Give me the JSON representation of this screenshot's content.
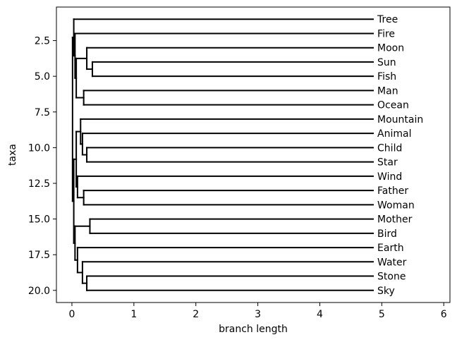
{
  "chart_data": {
    "type": "dendrogram",
    "orientation": "horizontal",
    "xlabel": "branch length",
    "ylabel": "taxa",
    "xlim": [
      -0.25,
      6.1
    ],
    "ylim": [
      20.85,
      0.15
    ],
    "xticks": [
      0,
      1,
      2,
      3,
      4,
      5,
      6
    ],
    "yticks": [
      2.5,
      5.0,
      7.5,
      10.0,
      12.5,
      15.0,
      17.5,
      20.0
    ],
    "xtick_labels": [
      "0",
      "1",
      "2",
      "3",
      "4",
      "5",
      "6"
    ],
    "ytick_labels": [
      "2.5",
      "5.0",
      "7.5",
      "10.0",
      "12.5",
      "15.0",
      "17.5",
      "20.0"
    ],
    "line_color": "#000000",
    "leaves": [
      {
        "name": "Tree",
        "y": 1
      },
      {
        "name": "Fire",
        "y": 2
      },
      {
        "name": "Moon",
        "y": 3
      },
      {
        "name": "Sun",
        "y": 4
      },
      {
        "name": "Fish",
        "y": 5
      },
      {
        "name": "Man",
        "y": 6
      },
      {
        "name": "Ocean",
        "y": 7
      },
      {
        "name": "Mountain",
        "y": 8
      },
      {
        "name": "Animal",
        "y": 9
      },
      {
        "name": "Child",
        "y": 10
      },
      {
        "name": "Star",
        "y": 11
      },
      {
        "name": "Wind",
        "y": 12
      },
      {
        "name": "Father",
        "y": 13
      },
      {
        "name": "Woman",
        "y": 14
      },
      {
        "name": "Mother",
        "y": 15
      },
      {
        "name": "Bird",
        "y": 16
      },
      {
        "name": "Earth",
        "y": 17
      },
      {
        "name": "Water",
        "y": 18
      },
      {
        "name": "Stone",
        "y": 19
      },
      {
        "name": "Sky",
        "y": 20
      }
    ],
    "leaf_x": 4.86,
    "nodes": [
      {
        "id": "sunfish",
        "x": 0.33,
        "y_top": 4,
        "y_bottom": 5
      },
      {
        "id": "moonsunfish",
        "x": 0.24,
        "y_top": 3,
        "y_bottom": 4.5
      },
      {
        "id": "manocean",
        "x": 0.19,
        "y_top": 6,
        "y_bottom": 7
      },
      {
        "id": "grpA",
        "x": 0.07,
        "y_top": 3.75,
        "y_bottom": 6.5
      },
      {
        "id": "firegrp",
        "x": 0.05,
        "y_top": 2,
        "y_bottom": 5.125
      },
      {
        "id": "top",
        "x": 0.03,
        "y_top": 1,
        "y_bottom": 3.5625
      },
      {
        "id": "childstar",
        "x": 0.24,
        "y_top": 10,
        "y_bottom": 11
      },
      {
        "id": "animalgrp",
        "x": 0.17,
        "y_top": 9,
        "y_bottom": 10.5
      },
      {
        "id": "mountaingrp",
        "x": 0.14,
        "y_top": 8,
        "y_bottom": 9.75
      },
      {
        "id": "fatherwoman",
        "x": 0.19,
        "y_top": 13,
        "y_bottom": 14
      },
      {
        "id": "windgrp",
        "x": 0.09,
        "y_top": 12,
        "y_bottom": 13.5
      },
      {
        "id": "midgrp",
        "x": 0.07,
        "y_top": 8.875,
        "y_bottom": 12.75
      },
      {
        "id": "motherbird",
        "x": 0.29,
        "y_top": 15,
        "y_bottom": 16
      },
      {
        "id": "stonesky",
        "x": 0.24,
        "y_top": 19,
        "y_bottom": 20
      },
      {
        "id": "watergrp",
        "x": 0.17,
        "y_top": 18,
        "y_bottom": 19.5
      },
      {
        "id": "earthgrp",
        "x": 0.09,
        "y_top": 17,
        "y_bottom": 18.75
      },
      {
        "id": "lowgrp",
        "x": 0.05,
        "y_top": 15.5,
        "y_bottom": 17.875
      },
      {
        "id": "midlow",
        "x": 0.03,
        "y_top": 10.8125,
        "y_bottom": 16.6875
      },
      {
        "id": "root",
        "x": 0.01,
        "y_top": 2.28125,
        "y_bottom": 13.75
      }
    ],
    "edges": [
      {
        "x_from": 0.03,
        "x_to": 4.86,
        "y": 1
      },
      {
        "x_from": 0.05,
        "x_to": 4.86,
        "y": 2
      },
      {
        "x_from": 0.24,
        "x_to": 4.86,
        "y": 3
      },
      {
        "x_from": 0.33,
        "x_to": 4.86,
        "y": 4
      },
      {
        "x_from": 0.33,
        "x_to": 4.86,
        "y": 5
      },
      {
        "x_from": 0.19,
        "x_to": 4.86,
        "y": 6
      },
      {
        "x_from": 0.19,
        "x_to": 4.86,
        "y": 7
      },
      {
        "x_from": 0.14,
        "x_to": 4.86,
        "y": 8
      },
      {
        "x_from": 0.17,
        "x_to": 4.86,
        "y": 9
      },
      {
        "x_from": 0.24,
        "x_to": 4.86,
        "y": 10
      },
      {
        "x_from": 0.24,
        "x_to": 4.86,
        "y": 11
      },
      {
        "x_from": 0.09,
        "x_to": 4.86,
        "y": 12
      },
      {
        "x_from": 0.19,
        "x_to": 4.86,
        "y": 13
      },
      {
        "x_from": 0.19,
        "x_to": 4.86,
        "y": 14
      },
      {
        "x_from": 0.29,
        "x_to": 4.86,
        "y": 15
      },
      {
        "x_from": 0.29,
        "x_to": 4.86,
        "y": 16
      },
      {
        "x_from": 0.09,
        "x_to": 4.86,
        "y": 17
      },
      {
        "x_from": 0.17,
        "x_to": 4.86,
        "y": 18
      },
      {
        "x_from": 0.24,
        "x_to": 4.86,
        "y": 19
      },
      {
        "x_from": 0.24,
        "x_to": 4.86,
        "y": 20
      },
      {
        "x_from": 0.24,
        "x_to": 0.33,
        "y": 4.5
      },
      {
        "x_from": 0.07,
        "x_to": 0.24,
        "y": 3.75
      },
      {
        "x_from": 0.07,
        "x_to": 0.19,
        "y": 6.5
      },
      {
        "x_from": 0.05,
        "x_to": 0.07,
        "y": 5.125
      },
      {
        "x_from": 0.03,
        "x_to": 0.05,
        "y": 3.5625
      },
      {
        "x_from": 0.17,
        "x_to": 0.24,
        "y": 10.5
      },
      {
        "x_from": 0.14,
        "x_to": 0.17,
        "y": 9.75
      },
      {
        "x_from": 0.07,
        "x_to": 0.14,
        "y": 8.875
      },
      {
        "x_from": 0.09,
        "x_to": 0.19,
        "y": 13.5
      },
      {
        "x_from": 0.07,
        "x_to": 0.09,
        "y": 12.75
      },
      {
        "x_from": 0.03,
        "x_to": 0.07,
        "y": 10.8125
      },
      {
        "x_from": 0.17,
        "x_to": 0.24,
        "y": 19.5
      },
      {
        "x_from": 0.09,
        "x_to": 0.17,
        "y": 18.75
      },
      {
        "x_from": 0.05,
        "x_to": 0.29,
        "y": 15.5
      },
      {
        "x_from": 0.05,
        "x_to": 0.09,
        "y": 17.875
      },
      {
        "x_from": 0.03,
        "x_to": 0.05,
        "y": 16.6875
      },
      {
        "x_from": 0.01,
        "x_to": 0.03,
        "y": 2.28125
      },
      {
        "x_from": 0.01,
        "x_to": 0.03,
        "y": 13.75
      }
    ]
  }
}
